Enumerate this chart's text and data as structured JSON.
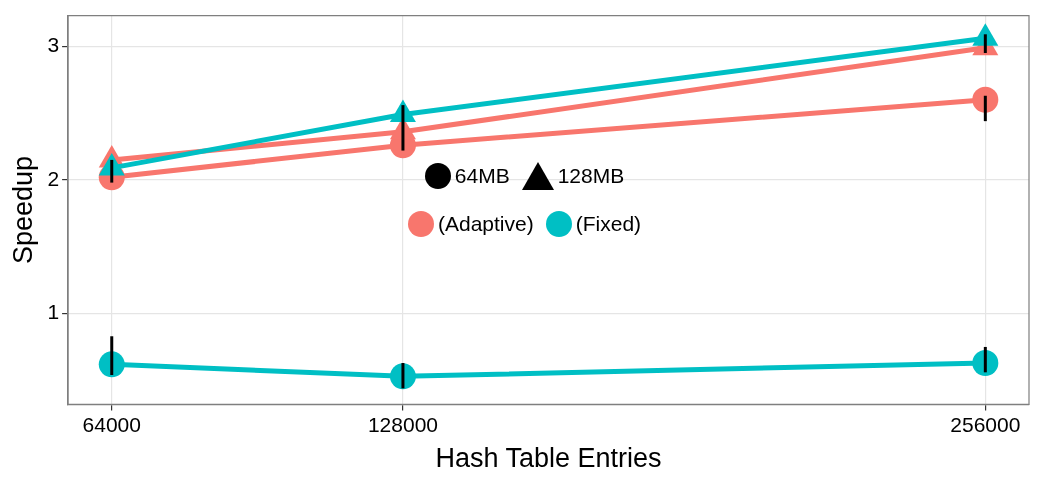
{
  "chart_data": {
    "type": "line",
    "xlabel": "Hash Table Entries",
    "ylabel": "Speedup",
    "x": [
      64000,
      128000,
      256000
    ],
    "xlim": [
      54400,
      265600
    ],
    "xticks": [
      64000,
      128000,
      256000
    ],
    "ylim": [
      0.32,
      3.23
    ],
    "yticks": [
      1,
      2,
      3
    ],
    "grid": true,
    "legend": "center",
    "annotations": [
      "64MB",
      "128MB"
    ],
    "series": [
      {
        "name": "(Adaptive)",
        "color": "#f8766d",
        "marker": "circle",
        "values": [
          2.02,
          2.26,
          2.6
        ],
        "errors": [
          [
            1.98,
            2.15
          ],
          null,
          [
            2.44,
            2.63
          ]
        ]
      },
      {
        "color": "#f8766d",
        "marker": "triangle",
        "values": [
          2.15,
          2.36,
          2.99
        ],
        "errors": [
          null,
          [
            2.22,
            2.56
          ],
          [
            2.95,
            3.09
          ]
        ]
      },
      {
        "name": "(Fixed)",
        "color": "#00bfc4",
        "marker": "circle",
        "values": [
          0.62,
          0.53,
          0.63
        ],
        "errors": [
          [
            0.54,
            0.83
          ],
          [
            0.44,
            0.63
          ],
          [
            0.56,
            0.75
          ]
        ]
      },
      {
        "color": "#00bfc4",
        "marker": "triangle",
        "values": [
          2.09,
          2.49,
          3.06
        ]
      }
    ]
  }
}
